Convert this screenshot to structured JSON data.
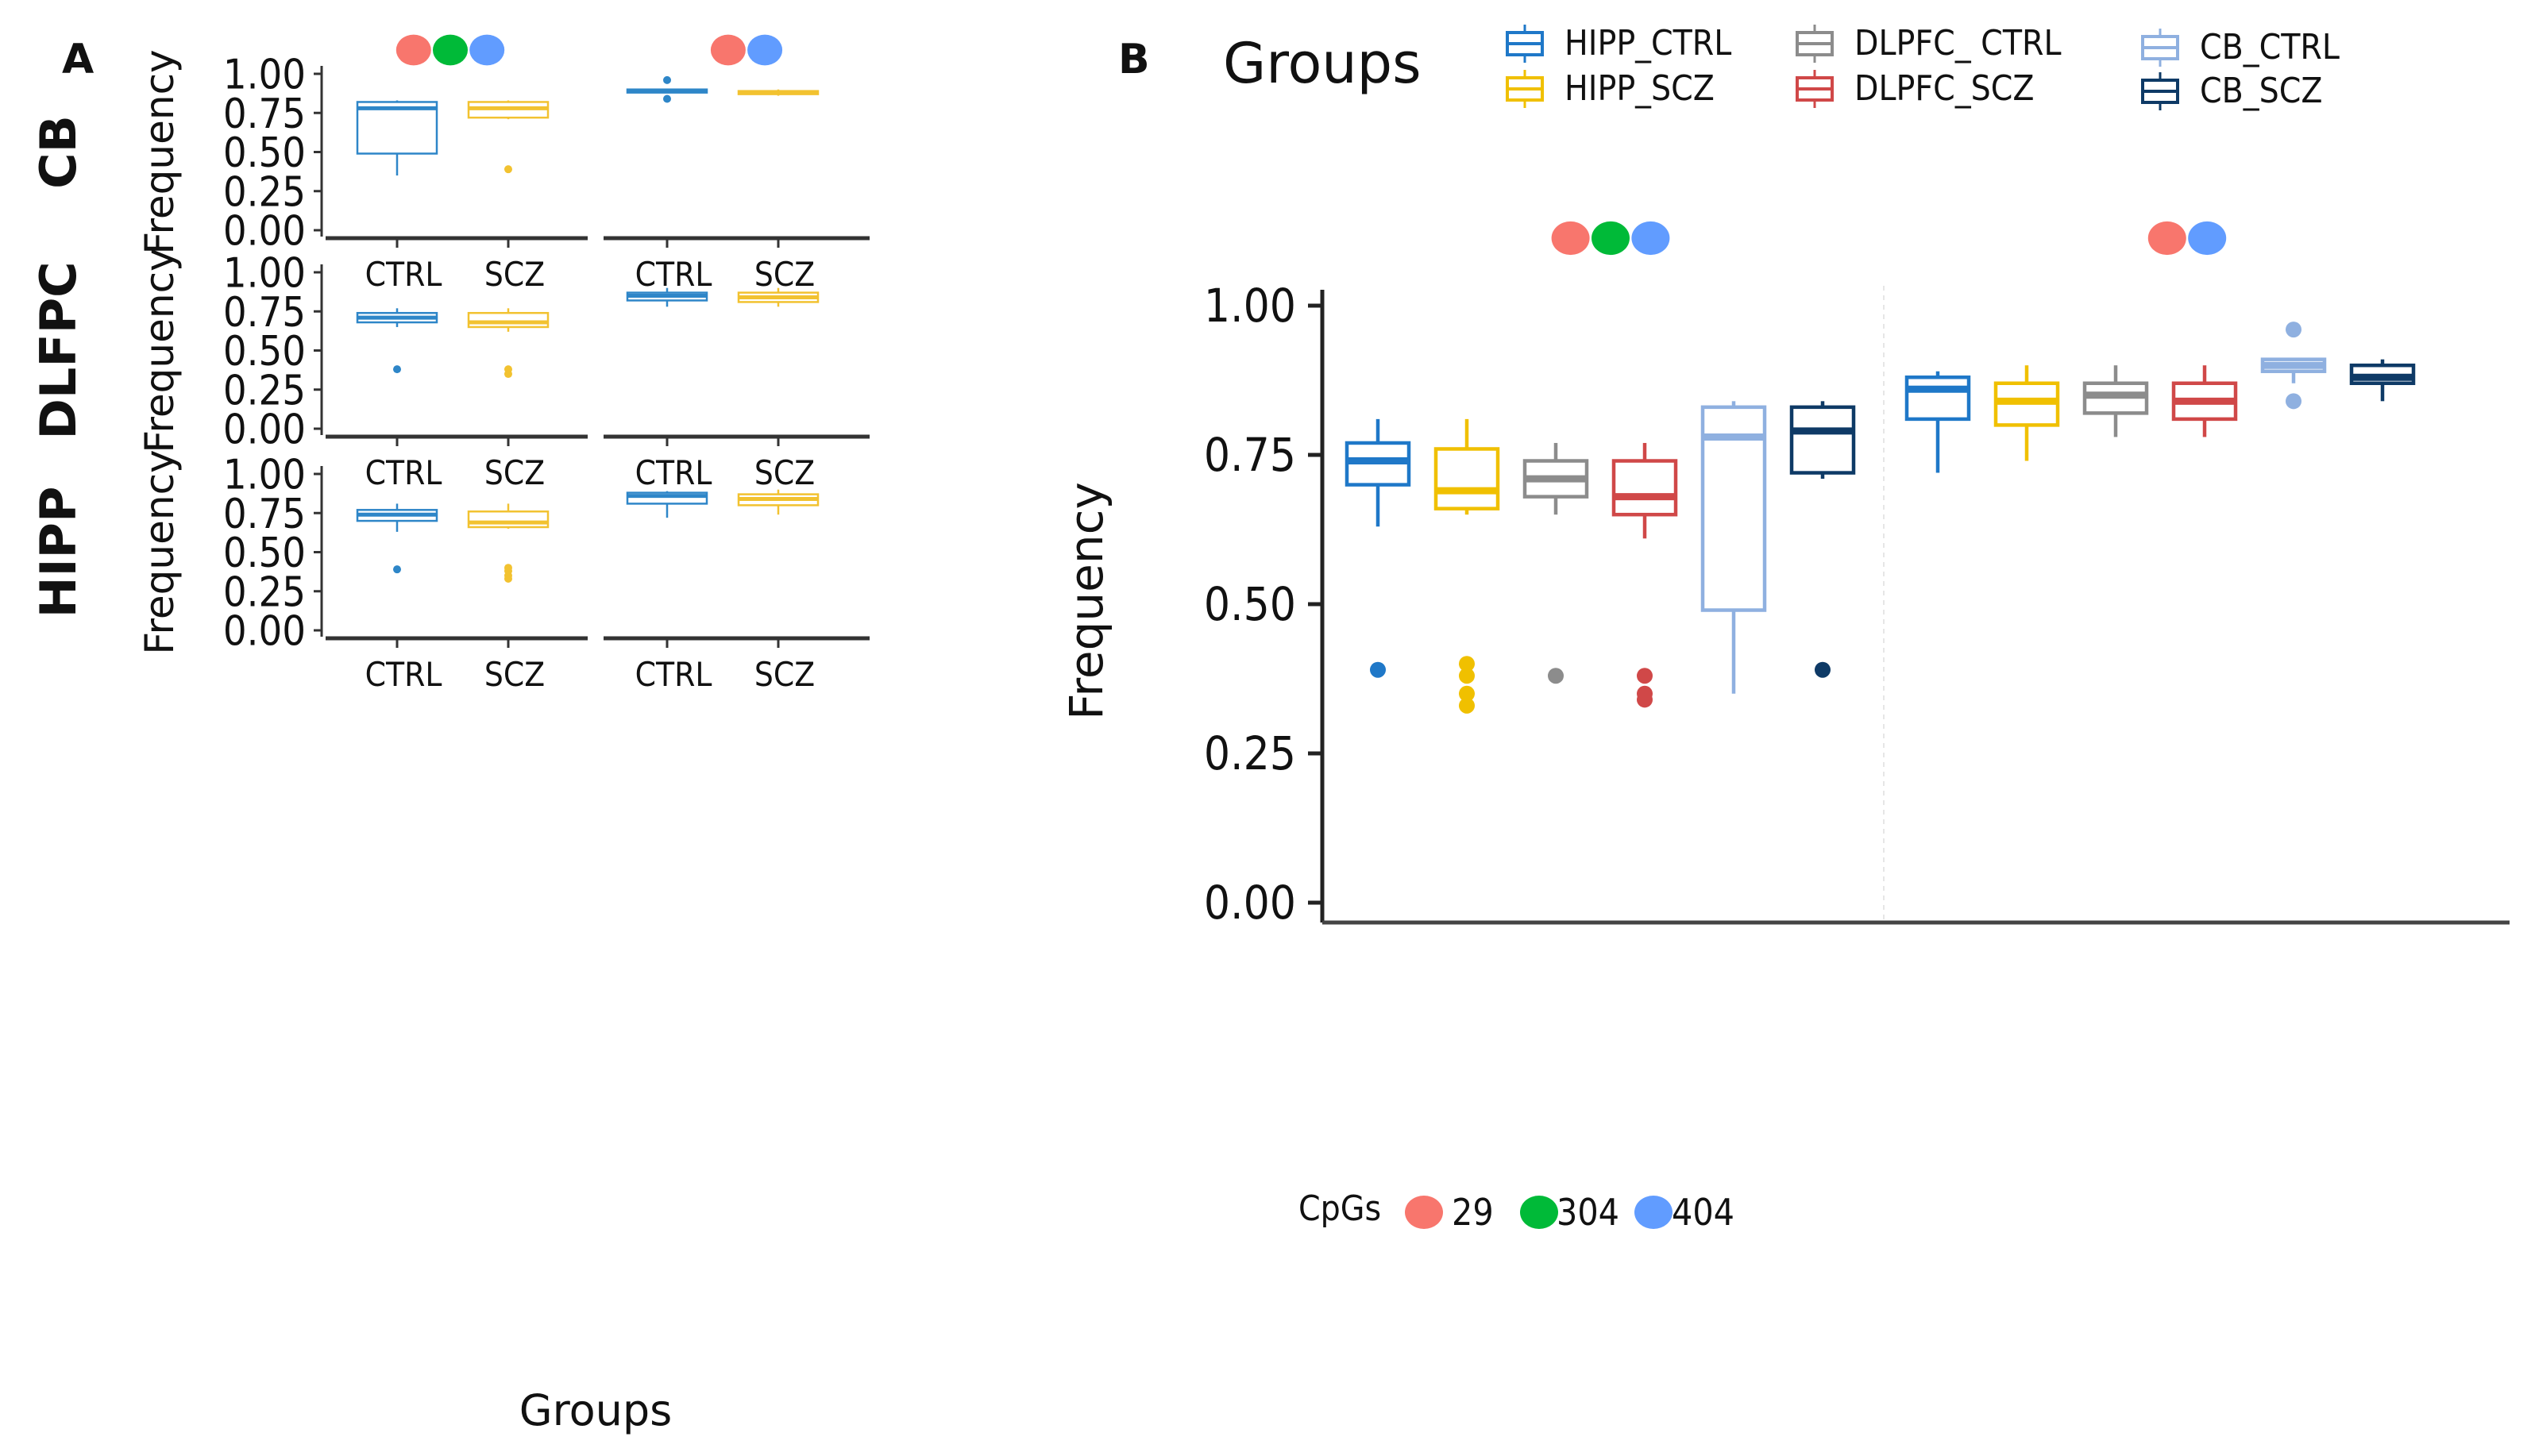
{
  "figure": {
    "panel_a_label": "A",
    "panel_b_label": "B"
  },
  "colors": {
    "cpg_29": "#F8766D",
    "cpg_304": "#00BA38",
    "cpg_404": "#619CFF",
    "HIPP_CTRL": "#1F78C8",
    "HIPP_SCZ": "#F0C000",
    "DLPFC_CTRL": "#8C8C8C",
    "DLPFC_SCZ": "#D04848",
    "CB_CTRL": "#8FB0E0",
    "CB_SCZ": "#0E3A66",
    "ctrl_a": "#2E86C8",
    "scz_a": "#F2C230"
  },
  "chart_data": [
    {
      "type": "box",
      "panel": "A",
      "title": "",
      "xlabel": "Groups",
      "ylabel": "Frequency",
      "ylim": [
        0,
        1
      ],
      "yticks": [
        "0.00",
        "0.25",
        "0.50",
        "0.75",
        "1.00"
      ],
      "facet_headers": [
        {
          "cpgs": [
            "29",
            "304",
            "404"
          ]
        },
        {
          "cpgs": [
            "29",
            "404"
          ]
        }
      ],
      "rows": [
        {
          "region": "CB",
          "facets": [
            {
              "categories": [
                "CTRL",
                "SCZ"
              ],
              "boxes": [
                {
                  "group": "CTRL",
                  "min": 0.35,
                  "q1": 0.49,
                  "median": 0.78,
                  "q3": 0.82,
                  "max": 0.83,
                  "outliers": []
                },
                {
                  "group": "SCZ",
                  "min": 0.71,
                  "q1": 0.72,
                  "median": 0.78,
                  "q3": 0.82,
                  "max": 0.83,
                  "outliers": [
                    0.39
                  ]
                }
              ]
            },
            {
              "categories": [
                "CTRL",
                "SCZ"
              ],
              "boxes": [
                {
                  "group": "CTRL",
                  "min": 0.88,
                  "q1": 0.88,
                  "median": 0.89,
                  "q3": 0.9,
                  "max": 0.9,
                  "outliers": [
                    0.96,
                    0.84
                  ]
                },
                {
                  "group": "SCZ",
                  "min": 0.86,
                  "q1": 0.87,
                  "median": 0.88,
                  "q3": 0.89,
                  "max": 0.9,
                  "outliers": []
                }
              ]
            }
          ]
        },
        {
          "region": "DLFPC",
          "facets": [
            {
              "categories": [
                "CTRL",
                "SCZ"
              ],
              "boxes": [
                {
                  "group": "CTRL",
                  "min": 0.65,
                  "q1": 0.68,
                  "median": 0.71,
                  "q3": 0.74,
                  "max": 0.77,
                  "outliers": [
                    0.38
                  ]
                },
                {
                  "group": "SCZ",
                  "min": 0.62,
                  "q1": 0.65,
                  "median": 0.68,
                  "q3": 0.74,
                  "max": 0.77,
                  "outliers": [
                    0.38,
                    0.35
                  ]
                }
              ]
            },
            {
              "categories": [
                "CTRL",
                "SCZ"
              ],
              "boxes": [
                {
                  "group": "CTRL",
                  "min": 0.78,
                  "q1": 0.82,
                  "median": 0.85,
                  "q3": 0.87,
                  "max": 0.9,
                  "outliers": []
                },
                {
                  "group": "SCZ",
                  "min": 0.78,
                  "q1": 0.81,
                  "median": 0.84,
                  "q3": 0.87,
                  "max": 0.9,
                  "outliers": []
                }
              ]
            }
          ]
        },
        {
          "region": "HIPP",
          "facets": [
            {
              "categories": [
                "CTRL",
                "SCZ"
              ],
              "boxes": [
                {
                  "group": "CTRL",
                  "min": 0.63,
                  "q1": 0.7,
                  "median": 0.74,
                  "q3": 0.77,
                  "max": 0.81,
                  "outliers": [
                    0.39
                  ]
                },
                {
                  "group": "SCZ",
                  "min": 0.65,
                  "q1": 0.66,
                  "median": 0.69,
                  "q3": 0.76,
                  "max": 0.81,
                  "outliers": [
                    0.4,
                    0.38,
                    0.35,
                    0.33
                  ]
                }
              ]
            },
            {
              "categories": [
                "CTRL",
                "SCZ"
              ],
              "boxes": [
                {
                  "group": "CTRL",
                  "min": 0.72,
                  "q1": 0.81,
                  "median": 0.86,
                  "q3": 0.88,
                  "max": 0.89,
                  "outliers": []
                },
                {
                  "group": "SCZ",
                  "min": 0.74,
                  "q1": 0.8,
                  "median": 0.84,
                  "q3": 0.87,
                  "max": 0.9,
                  "outliers": []
                }
              ]
            }
          ]
        }
      ]
    },
    {
      "type": "box",
      "panel": "B",
      "title": "",
      "xlabel": "",
      "ylabel": "Frequency",
      "ylim": [
        0,
        1
      ],
      "yticks": [
        "0.00",
        "0.25",
        "0.50",
        "0.75",
        "1.00"
      ],
      "legend": {
        "title": "Groups",
        "position": "top",
        "entries": [
          "HIPP_CTRL",
          "HIPP_SCZ",
          "DLPFC_ CTRL",
          "DLPFC_SCZ",
          "CB_CTRL",
          "CB_SCZ"
        ],
        "keys": [
          "HIPP_CTRL",
          "HIPP_SCZ",
          "DLPFC_CTRL",
          "DLPFC_SCZ",
          "CB_CTRL",
          "CB_SCZ"
        ]
      },
      "cpg_legend": {
        "title": "CpGs",
        "entries": [
          "29",
          "304",
          "404"
        ]
      },
      "facet_headers": [
        {
          "cpgs": [
            "29",
            "304",
            "404"
          ]
        },
        {
          "cpgs": [
            "29",
            "404"
          ]
        }
      ],
      "facets": [
        {
          "boxes": [
            {
              "group": "HIPP_CTRL",
              "min": 0.63,
              "q1": 0.7,
              "median": 0.74,
              "q3": 0.77,
              "max": 0.81,
              "outliers": [
                0.39
              ]
            },
            {
              "group": "HIPP_SCZ",
              "min": 0.65,
              "q1": 0.66,
              "median": 0.69,
              "q3": 0.76,
              "max": 0.81,
              "outliers": [
                0.4,
                0.38,
                0.35,
                0.33
              ]
            },
            {
              "group": "DLPFC_CTRL",
              "min": 0.65,
              "q1": 0.68,
              "median": 0.71,
              "q3": 0.74,
              "max": 0.77,
              "outliers": [
                0.38
              ]
            },
            {
              "group": "DLPFC_SCZ",
              "min": 0.61,
              "q1": 0.65,
              "median": 0.68,
              "q3": 0.74,
              "max": 0.77,
              "outliers": [
                0.38,
                0.35,
                0.34
              ]
            },
            {
              "group": "CB_CTRL",
              "min": 0.35,
              "q1": 0.49,
              "median": 0.78,
              "q3": 0.83,
              "max": 0.84,
              "outliers": []
            },
            {
              "group": "CB_SCZ",
              "min": 0.71,
              "q1": 0.72,
              "median": 0.79,
              "q3": 0.83,
              "max": 0.84,
              "outliers": [
                0.39
              ]
            }
          ]
        },
        {
          "boxes": [
            {
              "group": "HIPP_CTRL",
              "min": 0.72,
              "q1": 0.81,
              "median": 0.86,
              "q3": 0.88,
              "max": 0.89,
              "outliers": []
            },
            {
              "group": "HIPP_SCZ",
              "min": 0.74,
              "q1": 0.8,
              "median": 0.84,
              "q3": 0.87,
              "max": 0.9,
              "outliers": []
            },
            {
              "group": "DLPFC_CTRL",
              "min": 0.78,
              "q1": 0.82,
              "median": 0.85,
              "q3": 0.87,
              "max": 0.9,
              "outliers": []
            },
            {
              "group": "DLPFC_SCZ",
              "min": 0.78,
              "q1": 0.81,
              "median": 0.84,
              "q3": 0.87,
              "max": 0.9,
              "outliers": []
            },
            {
              "group": "CB_CTRL",
              "min": 0.87,
              "q1": 0.89,
              "median": 0.9,
              "q3": 0.91,
              "max": 0.91,
              "outliers": [
                0.96,
                0.84
              ]
            },
            {
              "group": "CB_SCZ",
              "min": 0.84,
              "q1": 0.87,
              "median": 0.88,
              "q3": 0.9,
              "max": 0.91,
              "outliers": []
            }
          ]
        }
      ]
    }
  ]
}
